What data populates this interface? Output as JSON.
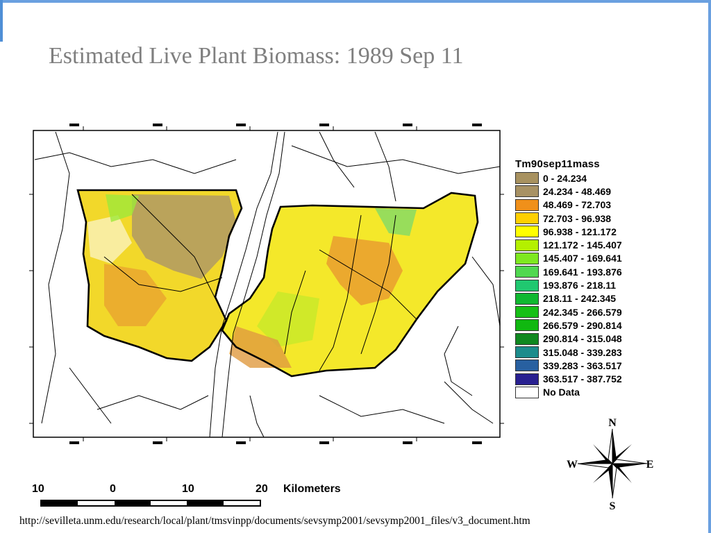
{
  "slide": {
    "title": "Estimated Live Plant Biomass: 1989 Sep 11",
    "source_url": "http://sevilleta.unm.edu/research/local/plant/tmsvinpp/documents/sevsymp2001/sevsymp2001_files/v3_document.htm"
  },
  "legend": {
    "title": "Tm90sep11mass",
    "items": [
      {
        "label": "0 - 24.234",
        "color": "#a89260"
      },
      {
        "label": "24.234 - 48.469",
        "color": "#a89264"
      },
      {
        "label": "48.469 - 72.703",
        "color": "#f0901a"
      },
      {
        "label": "72.703 - 96.938",
        "color": "#ffd000"
      },
      {
        "label": "96.938 - 121.172",
        "color": "#ffff00"
      },
      {
        "label": "121.172 - 145.407",
        "color": "#b4f000"
      },
      {
        "label": "145.407 - 169.641",
        "color": "#7ee820"
      },
      {
        "label": "169.641 - 193.876",
        "color": "#50d850"
      },
      {
        "label": "193.876 - 218.11",
        "color": "#20c870"
      },
      {
        "label": "218.11 - 242.345",
        "color": "#10b830"
      },
      {
        "label": "242.345 - 266.579",
        "color": "#16c016"
      },
      {
        "label": "266.579 - 290.814",
        "color": "#10b810"
      },
      {
        "label": "290.814 - 315.048",
        "color": "#108820"
      },
      {
        "label": "315.048 - 339.283",
        "color": "#1c8c8c"
      },
      {
        "label": "339.283 - 363.517",
        "color": "#2860a0"
      },
      {
        "label": "363.517 - 387.752",
        "color": "#282090"
      },
      {
        "label": "No Data",
        "color": "#ffffff"
      }
    ]
  },
  "compass": {
    "north": "N",
    "south": "S",
    "east": "E",
    "west": "W"
  },
  "scale": {
    "labels": [
      "10",
      "0",
      "10",
      "20"
    ],
    "unit": "Kilometers",
    "colors": [
      "#000000",
      "#ffffff"
    ]
  },
  "colors": {
    "title": "#7f7f7f",
    "accent_border": "#6aa0e0",
    "roads": "#000000"
  }
}
